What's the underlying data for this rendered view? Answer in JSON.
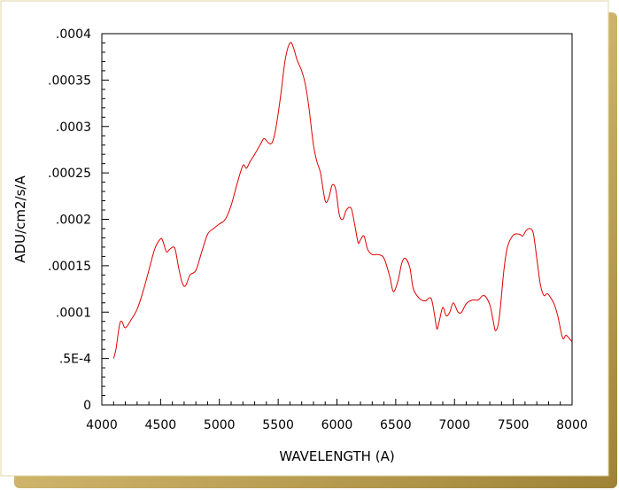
{
  "chart_data": {
    "type": "line",
    "title": "",
    "xlabel": "WAVELENGTH (A)",
    "ylabel": "ADU/cm2/s/A",
    "xlim": [
      4000,
      8000
    ],
    "ylim": [
      0,
      0.0004
    ],
    "grid": false,
    "line_color": "#dd0000",
    "x_ticks": [
      {
        "value": 4000,
        "label": "4000"
      },
      {
        "value": 4500,
        "label": "4500"
      },
      {
        "value": 5000,
        "label": "5000"
      },
      {
        "value": 5500,
        "label": "5500"
      },
      {
        "value": 6000,
        "label": "6000"
      },
      {
        "value": 6500,
        "label": "6500"
      },
      {
        "value": 7000,
        "label": "7000"
      },
      {
        "value": 7500,
        "label": "7500"
      },
      {
        "value": 8000,
        "label": "8000"
      }
    ],
    "y_ticks": [
      {
        "value": 0,
        "label": "0"
      },
      {
        "value": 5e-05,
        "label": ".5E-4"
      },
      {
        "value": 0.0001,
        "label": ".0001"
      },
      {
        "value": 0.00015,
        "label": ".00015"
      },
      {
        "value": 0.0002,
        "label": ".0002"
      },
      {
        "value": 0.00025,
        "label": ".00025"
      },
      {
        "value": 0.0003,
        "label": ".0003"
      },
      {
        "value": 0.00035,
        "label": ".00035"
      },
      {
        "value": 0.0004,
        "label": ".0004"
      }
    ],
    "series": [
      {
        "x": [
          4100,
          4120,
          4150,
          4170,
          4200,
          4250,
          4300,
          4350,
          4400,
          4450,
          4500,
          4520,
          4550,
          4580,
          4620,
          4650,
          4680,
          4710,
          4750,
          4800,
          4850,
          4900,
          4950,
          5000,
          5050,
          5100,
          5150,
          5200,
          5230,
          5260,
          5300,
          5350,
          5380,
          5420,
          5450,
          5480,
          5520,
          5560,
          5600,
          5630,
          5660,
          5700,
          5730,
          5760,
          5800,
          5830,
          5860,
          5900,
          5930,
          5960,
          5990,
          6020,
          6050,
          6080,
          6120,
          6150,
          6180,
          6200,
          6230,
          6260,
          6300,
          6350,
          6400,
          6450,
          6480,
          6520,
          6550,
          6580,
          6620,
          6650,
          6700,
          6750,
          6800,
          6830,
          6850,
          6870,
          6900,
          6930,
          6960,
          6990,
          7030,
          7060,
          7100,
          7150,
          7200,
          7250,
          7300,
          7330,
          7350,
          7380,
          7420,
          7450,
          7500,
          7550,
          7580,
          7610,
          7640,
          7670,
          7700,
          7730,
          7760,
          7790,
          7820,
          7850,
          7880,
          7920,
          7950,
          8000
        ],
        "y": [
          5e-05,
          6e-05,
          8.6e-05,
          9e-05,
          8.3e-05,
          9.2e-05,
          0.000103,
          0.000122,
          0.000145,
          0.000168,
          0.000179,
          0.000176,
          0.000165,
          0.000168,
          0.000169,
          0.00015,
          0.000133,
          0.000128,
          0.00014,
          0.000145,
          0.000165,
          0.000184,
          0.00019,
          0.000195,
          0.0002,
          0.000215,
          0.000238,
          0.000258,
          0.000255,
          0.000262,
          0.00027,
          0.000281,
          0.000287,
          0.000282,
          0.000283,
          0.000298,
          0.000332,
          0.000372,
          0.00039,
          0.000385,
          0.000372,
          0.00036,
          0.000346,
          0.000322,
          0.00028,
          0.000262,
          0.00025,
          0.00022,
          0.000223,
          0.000237,
          0.000232,
          0.000205,
          0.0002,
          0.00021,
          0.000212,
          0.000195,
          0.000175,
          0.000178,
          0.000182,
          0.000168,
          0.000162,
          0.000162,
          0.000158,
          0.000138,
          0.000122,
          0.000134,
          0.000152,
          0.000158,
          0.000148,
          0.000125,
          0.000115,
          0.000112,
          0.000115,
          9.7e-05,
          8.2e-05,
          9e-05,
          0.000105,
          9.6e-05,
          0.0001,
          0.00011,
          0.0001,
          0.0001,
          0.000109,
          0.000113,
          0.000113,
          0.000118,
          0.000108,
          9e-05,
          8e-05,
          9.3e-05,
          0.000145,
          0.00017,
          0.000183,
          0.000184,
          0.000182,
          0.000188,
          0.00019,
          0.000185,
          0.000158,
          0.00013,
          0.000118,
          0.00012,
          0.000115,
          0.000108,
          9.5e-05,
          7.2e-05,
          7.5e-05,
          6.8e-05
        ]
      }
    ]
  }
}
